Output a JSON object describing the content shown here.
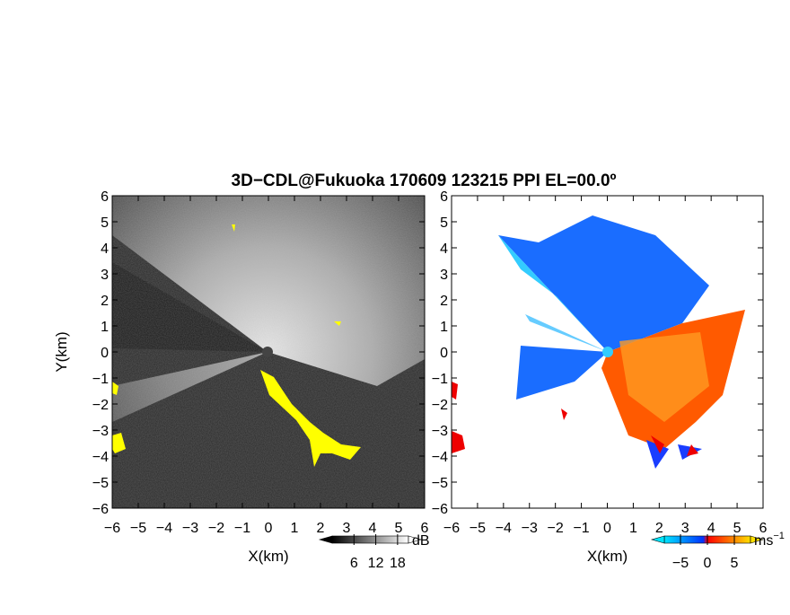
{
  "title": "3D−CDL@Fukuoka 170609 123215 PPI EL=00.0º",
  "panels": [
    {
      "xlabel": "X(km)",
      "ylabel": "Y(km)",
      "xlim": [
        -6,
        6
      ],
      "ylim": [
        -6,
        6
      ],
      "xticks": [
        {
          "value": -6,
          "label": "−6"
        },
        {
          "value": -5,
          "label": "−5"
        },
        {
          "value": -4,
          "label": "−4"
        },
        {
          "value": -3,
          "label": "−3"
        },
        {
          "value": -2,
          "label": "−2"
        },
        {
          "value": -1,
          "label": "−1"
        },
        0,
        1,
        2,
        3,
        4,
        5,
        6
      ],
      "yticks": [
        {
          "value": -6,
          "label": "−6"
        },
        {
          "value": -5,
          "label": "−5"
        },
        {
          "value": -4,
          "label": "−4"
        },
        {
          "value": -3,
          "label": "−3"
        },
        {
          "value": -2,
          "label": "−2"
        },
        {
          "value": -1,
          "label": "−1"
        },
        0,
        1,
        2,
        3,
        4,
        5,
        6
      ],
      "colorbar": {
        "clim": [
          0,
          21
        ],
        "ticks": [
          6,
          12,
          18
        ],
        "unit": "dB"
      }
    },
    {
      "xlabel": "X(km)",
      "xlim": [
        -6,
        6
      ],
      "ylim": [
        -6,
        6
      ],
      "xticks": [
        {
          "value": -6,
          "label": "−6"
        },
        {
          "value": -5,
          "label": "−5"
        },
        {
          "value": -4,
          "label": "−4"
        },
        {
          "value": -3,
          "label": "−3"
        },
        {
          "value": -2,
          "label": "−2"
        },
        {
          "value": -1,
          "label": "−1"
        },
        0,
        1,
        2,
        3,
        4,
        5,
        6
      ],
      "yticks": [
        {
          "value": -6,
          "label": "−6"
        },
        {
          "value": -5,
          "label": "−5"
        },
        {
          "value": -4,
          "label": "−4"
        },
        {
          "value": -3,
          "label": "−3"
        },
        {
          "value": -2,
          "label": "−2"
        },
        {
          "value": -1,
          "label": "−1"
        },
        0,
        1,
        2,
        3,
        4,
        5,
        6
      ],
      "colorbar": {
        "clim": [
          -8,
          8
        ],
        "ticks": [
          {
            "value": -5,
            "label": "−5"
          },
          0,
          5
        ],
        "unit": "ms",
        "unit_exponent": "−1"
      }
    }
  ]
}
